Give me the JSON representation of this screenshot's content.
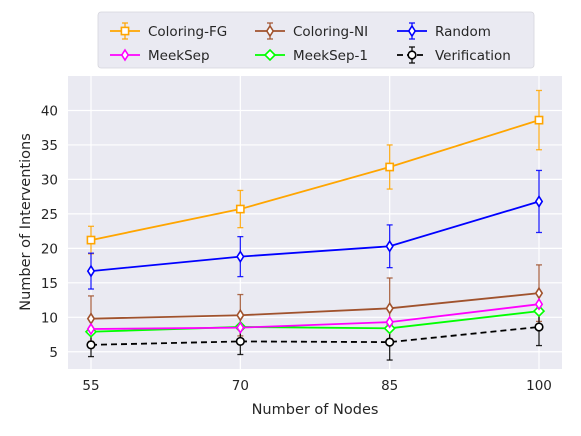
{
  "chart_data": {
    "type": "line",
    "xlabel": "Number of Nodes",
    "ylabel": "Number of Interventions",
    "x": [
      55,
      70,
      85,
      100
    ],
    "xticks": [
      55,
      70,
      85,
      100
    ],
    "yticks": [
      5,
      10,
      15,
      20,
      25,
      30,
      35,
      40
    ],
    "ylim": [
      2.5,
      45
    ],
    "grid": true,
    "legend_position": "top",
    "series": [
      {
        "name": "Coloring-FG",
        "color": "#FFA500",
        "marker": "square",
        "dashed": false,
        "values": [
          21.2,
          25.7,
          31.8,
          38.6
        ],
        "errors": [
          2.0,
          2.7,
          3.2,
          4.3
        ]
      },
      {
        "name": "Coloring-NI",
        "color": "#A0522D",
        "marker": "thin_diamond",
        "dashed": false,
        "values": [
          9.8,
          10.3,
          11.3,
          13.5
        ],
        "errors": [
          3.3,
          3.0,
          4.4,
          4.1
        ]
      },
      {
        "name": "Random",
        "color": "#0000FF",
        "marker": "thin_diamond",
        "dashed": false,
        "values": [
          16.7,
          18.8,
          20.3,
          26.8
        ],
        "errors": [
          2.6,
          2.9,
          3.1,
          4.5
        ]
      },
      {
        "name": "MeekSep",
        "color": "#FF00FF",
        "marker": "thin_diamond",
        "dashed": false,
        "values": [
          8.3,
          8.5,
          9.3,
          11.9
        ],
        "errors": [
          0,
          0,
          0,
          0
        ]
      },
      {
        "name": "MeekSep-1",
        "color": "#00FF00",
        "marker": "diamond",
        "dashed": false,
        "values": [
          7.9,
          8.6,
          8.4,
          10.9
        ],
        "errors": [
          0,
          0,
          0,
          0
        ]
      },
      {
        "name": "Verification",
        "color": "#000000",
        "marker": "circle",
        "dashed": true,
        "values": [
          6.0,
          6.5,
          6.4,
          8.6
        ],
        "errors": [
          1.7,
          1.9,
          2.6,
          2.7
        ]
      }
    ]
  }
}
